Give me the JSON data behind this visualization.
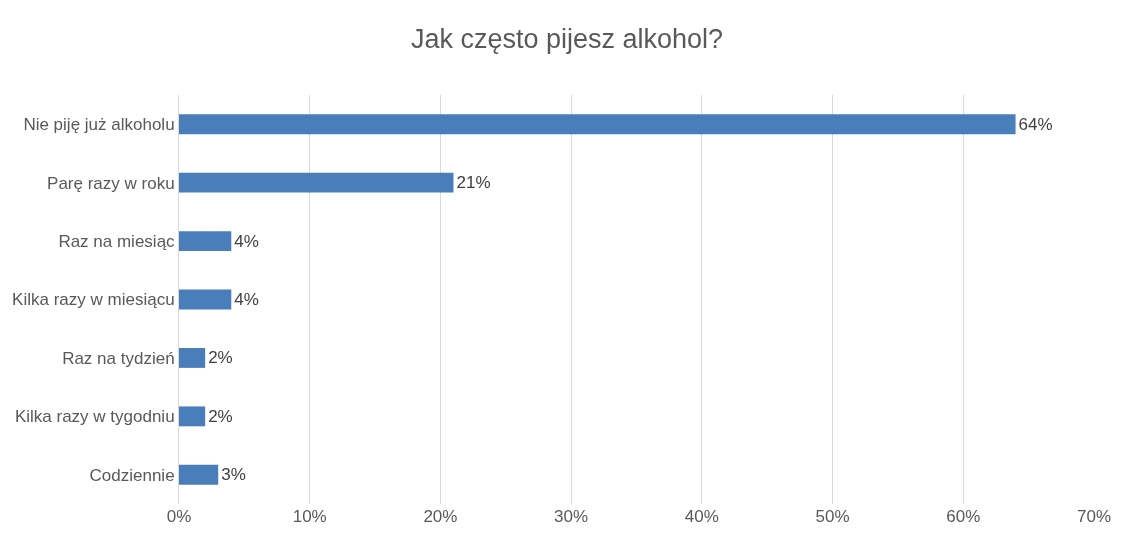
{
  "chart_data": {
    "type": "bar",
    "orientation": "horizontal",
    "title": "Jak często pijesz alkohol?",
    "categories": [
      "Nie piję już alkoholu",
      "Parę razy w roku",
      "Raz na miesiąc",
      "Kilka razy w miesiącu",
      "Raz na tydzień",
      "Kilka razy w tygodniu",
      "Codziennie"
    ],
    "values": [
      64,
      21,
      4,
      4,
      2,
      2,
      3
    ],
    "value_labels": [
      "64%",
      "21%",
      "4%",
      "4%",
      "2%",
      "2%",
      "3%"
    ],
    "color": "#4a7ebb",
    "xlim": [
      0,
      70
    ],
    "xticks": [
      {
        "value": 0,
        "label": "0%"
      },
      {
        "value": 10,
        "label": "10%"
      },
      {
        "value": 20,
        "label": "20%"
      },
      {
        "value": 30,
        "label": "30%"
      },
      {
        "value": 40,
        "label": "40%"
      },
      {
        "value": 50,
        "label": "50%"
      },
      {
        "value": 60,
        "label": "60%"
      },
      {
        "value": 70,
        "label": "70%"
      }
    ],
    "grid": "x"
  }
}
